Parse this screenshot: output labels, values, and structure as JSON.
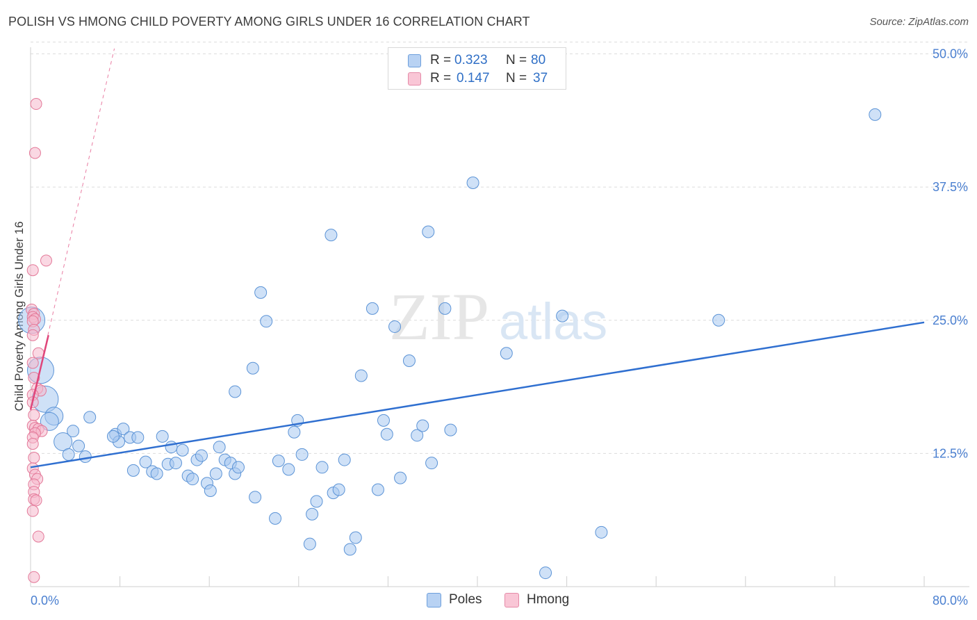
{
  "header": {
    "title": "POLISH VS HMONG CHILD POVERTY AMONG GIRLS UNDER 16 CORRELATION CHART",
    "source": "Source: ZipAtlas.com"
  },
  "legend_top": {
    "rows": [
      {
        "r_label": "R =",
        "r_value": "0.323",
        "n_label": "N =",
        "n_value": "80"
      },
      {
        "r_label": "R =",
        "r_value": "0.147",
        "n_label": "N =",
        "n_value": "37"
      }
    ]
  },
  "legend_bottom": [
    {
      "label": "Poles"
    },
    {
      "label": "Hmong"
    }
  ],
  "watermark": {
    "zip": "ZIP",
    "atlas": "atlas"
  },
  "colors": {
    "poles_fill": "#a8c8f0",
    "poles_stroke": "#5b93d6",
    "poles_line": "#2f6fd0",
    "hmong_fill": "#f6b8cc",
    "hmong_stroke": "#e37898",
    "hmong_line": "#e0457a",
    "axis_text": "#4a7fd0",
    "grid": "#dcdcdc"
  },
  "chart_data": {
    "type": "scatter",
    "title": "POLISH VS HMONG CHILD POVERTY AMONG GIRLS UNDER 16 CORRELATION CHART",
    "xlabel": "",
    "ylabel": "Child Poverty Among Girls Under 16",
    "xlim": [
      0,
      80
    ],
    "ylim": [
      0,
      52.5
    ],
    "x_tick_labels": [
      {
        "value": 0,
        "label": "0.0%"
      },
      {
        "value": 80,
        "label": "80.0%"
      }
    ],
    "y_tick_labels": [
      {
        "value": 12.5,
        "label": "12.5%"
      },
      {
        "value": 25,
        "label": "25.0%"
      },
      {
        "value": 37.5,
        "label": "37.5%"
      },
      {
        "value": 50,
        "label": "50.0%"
      }
    ],
    "series": [
      {
        "name": "Poles",
        "R": 0.323,
        "N": 80,
        "trend": {
          "x": [
            0,
            80
          ],
          "y": [
            11.2,
            24.8
          ],
          "style": "solid"
        },
        "points": [
          [
            0.1,
            25.0,
            3
          ],
          [
            0.9,
            20.3,
            3
          ],
          [
            1.3,
            17.6,
            3
          ],
          [
            2.1,
            16.0,
            2
          ],
          [
            1.7,
            15.5,
            2
          ],
          [
            2.9,
            13.6,
            2
          ],
          [
            3.4,
            12.4,
            1
          ],
          [
            3.8,
            14.6,
            1
          ],
          [
            4.3,
            13.2,
            1
          ],
          [
            4.9,
            12.2,
            1
          ],
          [
            5.3,
            15.9,
            1
          ],
          [
            7.6,
            14.3,
            1
          ],
          [
            7.9,
            13.6,
            1
          ],
          [
            8.3,
            14.8,
            1
          ],
          [
            7.4,
            14.1,
            1
          ],
          [
            8.9,
            14.0,
            1
          ],
          [
            9.2,
            10.9,
            1
          ],
          [
            9.6,
            14.0,
            1
          ],
          [
            10.3,
            11.7,
            1
          ],
          [
            10.9,
            10.8,
            1
          ],
          [
            11.3,
            10.6,
            1
          ],
          [
            11.8,
            14.1,
            1
          ],
          [
            12.3,
            11.5,
            1
          ],
          [
            12.6,
            13.1,
            1
          ],
          [
            13.0,
            11.6,
            1
          ],
          [
            13.6,
            12.8,
            1
          ],
          [
            14.1,
            10.4,
            1
          ],
          [
            14.5,
            10.1,
            1
          ],
          [
            14.9,
            11.9,
            1
          ],
          [
            15.3,
            12.3,
            1
          ],
          [
            15.8,
            9.7,
            1
          ],
          [
            16.1,
            9.0,
            1
          ],
          [
            16.6,
            10.6,
            1
          ],
          [
            16.9,
            13.1,
            1
          ],
          [
            17.4,
            11.9,
            1
          ],
          [
            17.9,
            11.6,
            1
          ],
          [
            18.3,
            10.6,
            1
          ],
          [
            18.6,
            11.2,
            1
          ],
          [
            18.3,
            18.3,
            1
          ],
          [
            19.9,
            20.5,
            1
          ],
          [
            20.6,
            27.6,
            1
          ],
          [
            21.1,
            24.9,
            1
          ],
          [
            20.1,
            8.4,
            1
          ],
          [
            21.9,
            6.4,
            1
          ],
          [
            22.2,
            11.8,
            1
          ],
          [
            23.1,
            11.0,
            1
          ],
          [
            23.6,
            14.5,
            1
          ],
          [
            23.9,
            15.6,
            1
          ],
          [
            24.3,
            12.4,
            1
          ],
          [
            25.0,
            4.0,
            1
          ],
          [
            25.2,
            6.8,
            1
          ],
          [
            25.6,
            8.0,
            1
          ],
          [
            26.1,
            11.2,
            1
          ],
          [
            26.9,
            33.0,
            1
          ],
          [
            27.1,
            8.8,
            1
          ],
          [
            27.6,
            9.1,
            1
          ],
          [
            28.1,
            11.9,
            1
          ],
          [
            28.6,
            3.5,
            1
          ],
          [
            29.1,
            4.6,
            1
          ],
          [
            29.6,
            19.8,
            1
          ],
          [
            30.6,
            26.1,
            1
          ],
          [
            31.1,
            9.1,
            1
          ],
          [
            31.6,
            15.6,
            1
          ],
          [
            31.9,
            14.3,
            1
          ],
          [
            32.6,
            24.4,
            1
          ],
          [
            33.1,
            10.2,
            1
          ],
          [
            33.9,
            21.2,
            1
          ],
          [
            34.6,
            14.2,
            1
          ],
          [
            35.1,
            15.1,
            1
          ],
          [
            35.6,
            33.3,
            1
          ],
          [
            35.9,
            11.6,
            1
          ],
          [
            37.1,
            26.1,
            1
          ],
          [
            37.6,
            14.7,
            1
          ],
          [
            39.6,
            37.9,
            1
          ],
          [
            42.6,
            21.9,
            1
          ],
          [
            46.1,
            1.3,
            1
          ],
          [
            47.6,
            25.4,
            1
          ],
          [
            51.1,
            5.1,
            1
          ],
          [
            61.6,
            25.0,
            1
          ],
          [
            75.6,
            44.3,
            1
          ]
        ]
      },
      {
        "name": "Hmong",
        "R": 0.147,
        "N": 37,
        "trend": {
          "x": [
            0,
            1.6
          ],
          "y": [
            16.6,
            23.6
          ],
          "style": "solid",
          "extension": {
            "x": [
              0,
              7.5
            ],
            "y": [
              16.6,
              50.5
            ],
            "style": "dashed"
          }
        },
        "points": [
          [
            0.5,
            45.3
          ],
          [
            0.4,
            40.7
          ],
          [
            1.4,
            30.6
          ],
          [
            0.2,
            29.7
          ],
          [
            0.1,
            26.0
          ],
          [
            0.3,
            25.6
          ],
          [
            0.2,
            25.3
          ],
          [
            0.4,
            25.1
          ],
          [
            0.2,
            24.9
          ],
          [
            0.3,
            24.1
          ],
          [
            0.2,
            23.6
          ],
          [
            0.7,
            21.9
          ],
          [
            0.2,
            21.0
          ],
          [
            0.3,
            19.6
          ],
          [
            0.6,
            18.6
          ],
          [
            0.9,
            18.4
          ],
          [
            0.2,
            18.0
          ],
          [
            0.2,
            17.3
          ],
          [
            0.3,
            16.1
          ],
          [
            0.2,
            15.1
          ],
          [
            0.4,
            14.9
          ],
          [
            0.7,
            14.8
          ],
          [
            1.0,
            14.6
          ],
          [
            0.4,
            14.4
          ],
          [
            0.2,
            14.0
          ],
          [
            0.2,
            13.4
          ],
          [
            0.3,
            12.1
          ],
          [
            0.2,
            11.1
          ],
          [
            0.4,
            10.5
          ],
          [
            0.6,
            10.1
          ],
          [
            0.3,
            9.6
          ],
          [
            0.3,
            8.9
          ],
          [
            0.3,
            8.2
          ],
          [
            0.5,
            8.1
          ],
          [
            0.2,
            7.1
          ],
          [
            0.7,
            4.7
          ],
          [
            0.3,
            0.9
          ]
        ]
      }
    ]
  }
}
